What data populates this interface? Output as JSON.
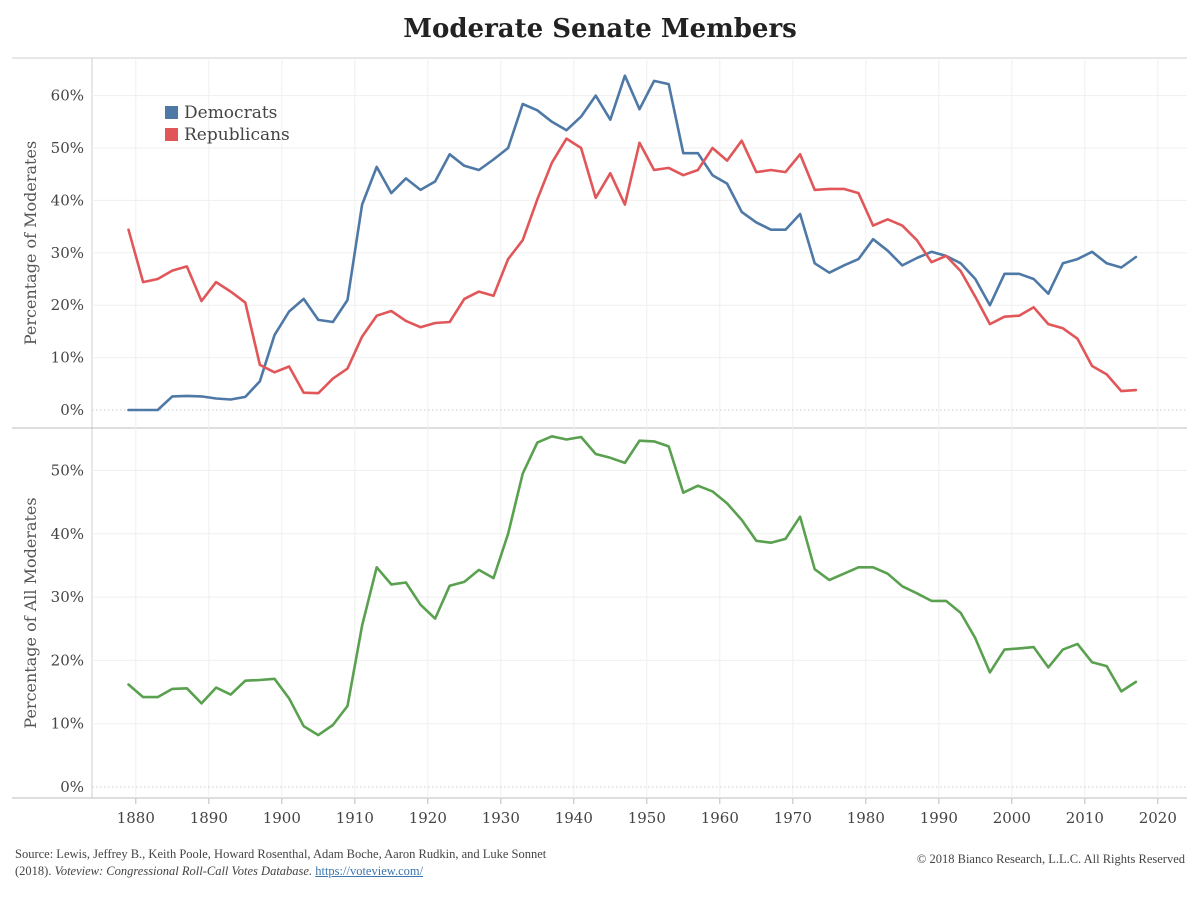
{
  "title": "Moderate Senate Members",
  "source": {
    "prefix": "Source: Lewis, Jeffrey B., Keith Poole, Howard Rosenthal, Adam Boche, Aaron Rudkin, and Luke Sonnet (2018).",
    "italic": "Voteview: Congressional Roll-Call Votes Database.",
    "link": "https://voteview.com/"
  },
  "copyright": "© 2018 Bianco Research, L.L.C. All Rights Reserved",
  "colors": {
    "democrats": "#4e79a7",
    "republicans": "#e15759",
    "all": "#59a14f"
  },
  "chart_data": [
    {
      "type": "line",
      "title": "",
      "ylabel": "Percentage of Moderates",
      "ylim": [
        0,
        66
      ],
      "yticks": [
        "0%",
        "10%",
        "20%",
        "30%",
        "40%",
        "50%",
        "60%"
      ],
      "xlim": [
        1874,
        2024
      ],
      "legend_position": "top-left",
      "x": [
        1879,
        1881,
        1883,
        1885,
        1887,
        1889,
        1891,
        1893,
        1895,
        1897,
        1899,
        1901,
        1903,
        1905,
        1907,
        1909,
        1911,
        1913,
        1915,
        1917,
        1919,
        1921,
        1923,
        1925,
        1927,
        1929,
        1931,
        1933,
        1935,
        1937,
        1939,
        1941,
        1943,
        1945,
        1947,
        1949,
        1951,
        1953,
        1955,
        1957,
        1959,
        1961,
        1963,
        1965,
        1967,
        1969,
        1971,
        1973,
        1975,
        1977,
        1979,
        1981,
        1983,
        1985,
        1987,
        1989,
        1991,
        1993,
        1995,
        1997,
        1999,
        2001,
        2003,
        2005,
        2007,
        2009,
        2011,
        2013,
        2015,
        2017
      ],
      "series": [
        {
          "name": "Democrats",
          "color": "#4e79a7",
          "values": [
            0,
            0,
            0,
            2.6,
            2.7,
            2.6,
            2.2,
            2.0,
            2.5,
            5.5,
            14.3,
            18.8,
            21.2,
            17.2,
            16.8,
            21.0,
            39.2,
            46.4,
            41.4,
            44.2,
            42.0,
            43.6,
            48.8,
            46.6,
            45.8,
            47.8,
            50.0,
            58.4,
            57.2,
            55.0,
            53.4,
            56.0,
            60.0,
            55.4,
            63.8,
            57.4,
            62.8,
            62.2,
            49.0,
            49.0,
            44.8,
            43.2,
            37.8,
            35.8,
            34.4,
            34.4,
            37.4,
            28.0,
            26.2,
            27.6,
            28.8,
            32.6,
            30.4,
            27.6,
            29.0,
            30.2,
            29.4,
            28.0,
            25.0,
            20.0,
            26.0,
            26.0,
            25.0,
            22.2,
            28.0,
            28.8,
            30.2,
            28.0,
            27.2,
            29.2
          ]
        },
        {
          "name": "Republicans",
          "color": "#e15759",
          "values": [
            34.4,
            24.4,
            25.0,
            26.6,
            27.4,
            20.8,
            24.4,
            22.6,
            20.5,
            8.6,
            7.2,
            8.3,
            3.3,
            3.2,
            6.0,
            7.9,
            14.0,
            18.0,
            18.9,
            17.0,
            15.8,
            16.6,
            16.8,
            21.2,
            22.6,
            21.8,
            28.8,
            32.4,
            40.2,
            47.2,
            51.8,
            50.0,
            40.5,
            45.2,
            39.2,
            51.0,
            45.8,
            46.2,
            44.8,
            45.8,
            50.0,
            47.6,
            51.4,
            45.4,
            45.8,
            45.4,
            48.8,
            42.0,
            42.2,
            42.2,
            41.4,
            35.2,
            36.4,
            35.2,
            32.4,
            28.2,
            29.4,
            26.5,
            21.6,
            16.4,
            17.8,
            18.0,
            19.6,
            16.4,
            15.6,
            13.6,
            8.4,
            6.8,
            3.6,
            3.8
          ]
        }
      ]
    },
    {
      "type": "line",
      "title": "",
      "ylabel": "Percentage of All Moderates",
      "ylim": [
        0,
        58
      ],
      "yticks": [
        "0%",
        "10%",
        "20%",
        "30%",
        "40%",
        "50%"
      ],
      "xlim": [
        1874,
        2024
      ],
      "xticks": [
        "1880",
        "1890",
        "1900",
        "1910",
        "1920",
        "1930",
        "1940",
        "1950",
        "1960",
        "1970",
        "1980",
        "1990",
        "2000",
        "2010",
        "2020"
      ],
      "x": [
        1879,
        1881,
        1883,
        1885,
        1887,
        1889,
        1891,
        1893,
        1895,
        1897,
        1899,
        1901,
        1903,
        1905,
        1907,
        1909,
        1911,
        1913,
        1915,
        1917,
        1919,
        1921,
        1923,
        1925,
        1927,
        1929,
        1931,
        1933,
        1935,
        1937,
        1939,
        1941,
        1943,
        1945,
        1947,
        1949,
        1951,
        1953,
        1955,
        1957,
        1959,
        1961,
        1963,
        1965,
        1967,
        1969,
        1971,
        1973,
        1975,
        1977,
        1979,
        1981,
        1983,
        1985,
        1987,
        1989,
        1991,
        1993,
        1995,
        1997,
        1999,
        2001,
        2003,
        2005,
        2007,
        2009,
        2011,
        2013,
        2015,
        2017
      ],
      "series": [
        {
          "color": "#59a14f",
          "values": [
            16.2,
            14.2,
            14.2,
            15.5,
            15.6,
            13.2,
            15.7,
            14.6,
            16.8,
            16.9,
            17.1,
            14.0,
            9.6,
            8.2,
            9.8,
            12.8,
            25.5,
            34.7,
            32.0,
            32.3,
            28.8,
            26.6,
            31.8,
            32.4,
            34.3,
            33.0,
            40.0,
            49.5,
            54.4,
            55.4,
            54.9,
            55.3,
            52.6,
            52.0,
            51.2,
            54.7,
            54.6,
            53.8,
            46.5,
            47.6,
            46.7,
            44.8,
            42.2,
            38.9,
            38.6,
            39.2,
            42.7,
            34.4,
            32.7,
            33.7,
            34.7,
            34.7,
            33.7,
            31.7,
            30.6,
            29.4,
            29.4,
            27.5,
            23.5,
            18.1,
            21.7,
            21.9,
            22.1,
            18.9,
            21.7,
            22.6,
            19.7,
            19.1,
            15.1,
            16.6
          ]
        }
      ]
    }
  ]
}
